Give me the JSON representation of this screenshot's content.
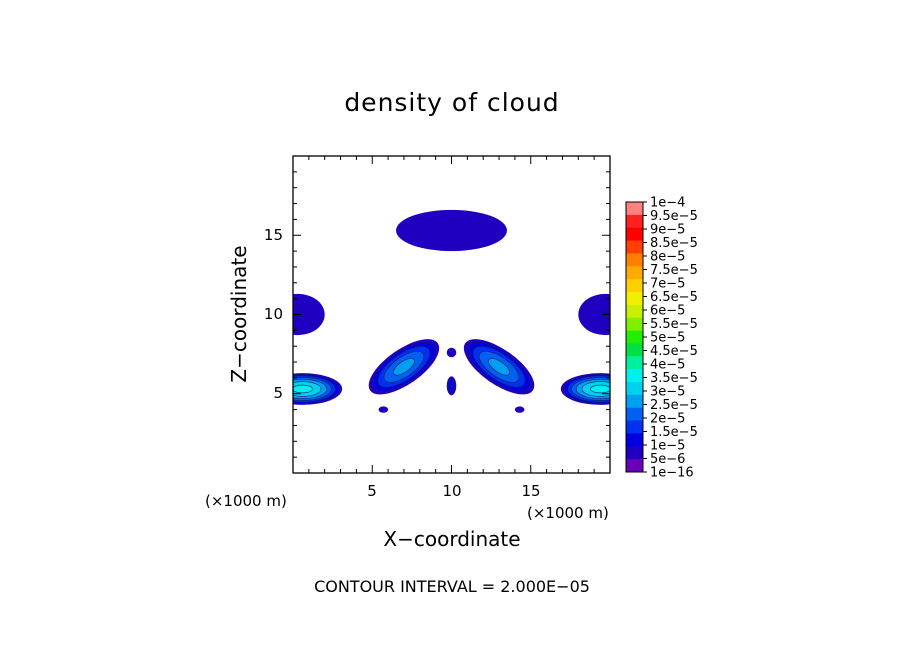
{
  "chart_data": {
    "type": "heatmap",
    "title": "density of cloud",
    "xlabel": "X−coordinate",
    "ylabel": "Z−coordinate",
    "x_unit_left": "(×1000 m)",
    "x_unit_right": "(×1000 m)",
    "xlim": [
      0,
      20
    ],
    "ylim": [
      0,
      20
    ],
    "xticks": [
      5,
      10,
      15
    ],
    "yticks": [
      5,
      10,
      15
    ],
    "xtick_labels": [
      "5",
      "10",
      "15"
    ],
    "ytick_labels": [
      "5",
      "10",
      "15"
    ],
    "footer": "CONTOUR INTERVAL = 2.000E−05",
    "colorbar": {
      "labels": [
        "1e−4",
        "9.5e−5",
        "9e−5",
        "8.5e−5",
        "8e−5",
        "7.5e−5",
        "7e−5",
        "6.5e−5",
        "6e−5",
        "5.5e−5",
        "5e−5",
        "4.5e−5",
        "4e−5",
        "3.5e−5",
        "3e−5",
        "2.5e−5",
        "2e−5",
        "1.5e−5",
        "1e−5",
        "5e−6",
        "1e−16"
      ],
      "colors": [
        "#ff8080",
        "#ff2020",
        "#ff0000",
        "#ff4000",
        "#ff8000",
        "#ffaa00",
        "#ffd000",
        "#f0f000",
        "#c8f000",
        "#80f000",
        "#20f000",
        "#00e040",
        "#00f0a0",
        "#00f0f0",
        "#00d0f0",
        "#00a0f0",
        "#0060f0",
        "#0030f0",
        "#0000e0",
        "#2000c0",
        "#6a00b8"
      ]
    },
    "features": [
      {
        "type": "blob",
        "cx": 10.0,
        "cz": 15.3,
        "rx": 3.5,
        "rz": 1.3,
        "rot": 0,
        "peak": 1e-16
      },
      {
        "type": "blob",
        "cx": 0.6,
        "cz": 5.3,
        "rx": 2.5,
        "rz": 1.0,
        "rot": 0,
        "peak": 3.2e-05
      },
      {
        "type": "blob",
        "cx": 19.4,
        "cz": 5.3,
        "rx": 2.5,
        "rz": 1.0,
        "rot": 0,
        "peak": 3.2e-05
      },
      {
        "type": "blob",
        "cx": 7.0,
        "cz": 6.7,
        "rx": 2.6,
        "rz": 1.1,
        "rot": -35,
        "peak": 2.2e-05
      },
      {
        "type": "blob",
        "cx": 13.0,
        "cz": 6.7,
        "rx": 2.6,
        "rz": 1.1,
        "rot": 35,
        "peak": 2.2e-05
      },
      {
        "type": "blob",
        "cx": 0.3,
        "cz": 10.0,
        "rx": 1.7,
        "rz": 1.3,
        "rot": 0,
        "peak": 5e-06
      },
      {
        "type": "blob",
        "cx": 19.7,
        "cz": 10.0,
        "rx": 1.7,
        "rz": 1.3,
        "rot": 0,
        "peak": 5e-06
      },
      {
        "type": "blob",
        "cx": 10.0,
        "cz": 5.5,
        "rx": 0.3,
        "rz": 0.6,
        "rot": 0,
        "peak": 1e-05
      },
      {
        "type": "blob",
        "cx": 10.0,
        "cz": 7.6,
        "rx": 0.3,
        "rz": 0.3,
        "rot": 0,
        "peak": 1e-16
      },
      {
        "type": "blob",
        "cx": 5.7,
        "cz": 4.0,
        "rx": 0.3,
        "rz": 0.2,
        "rot": 0,
        "peak": 1e-16
      },
      {
        "type": "blob",
        "cx": 14.3,
        "cz": 4.0,
        "rx": 0.3,
        "rz": 0.2,
        "rot": 0,
        "peak": 1e-16
      }
    ]
  }
}
